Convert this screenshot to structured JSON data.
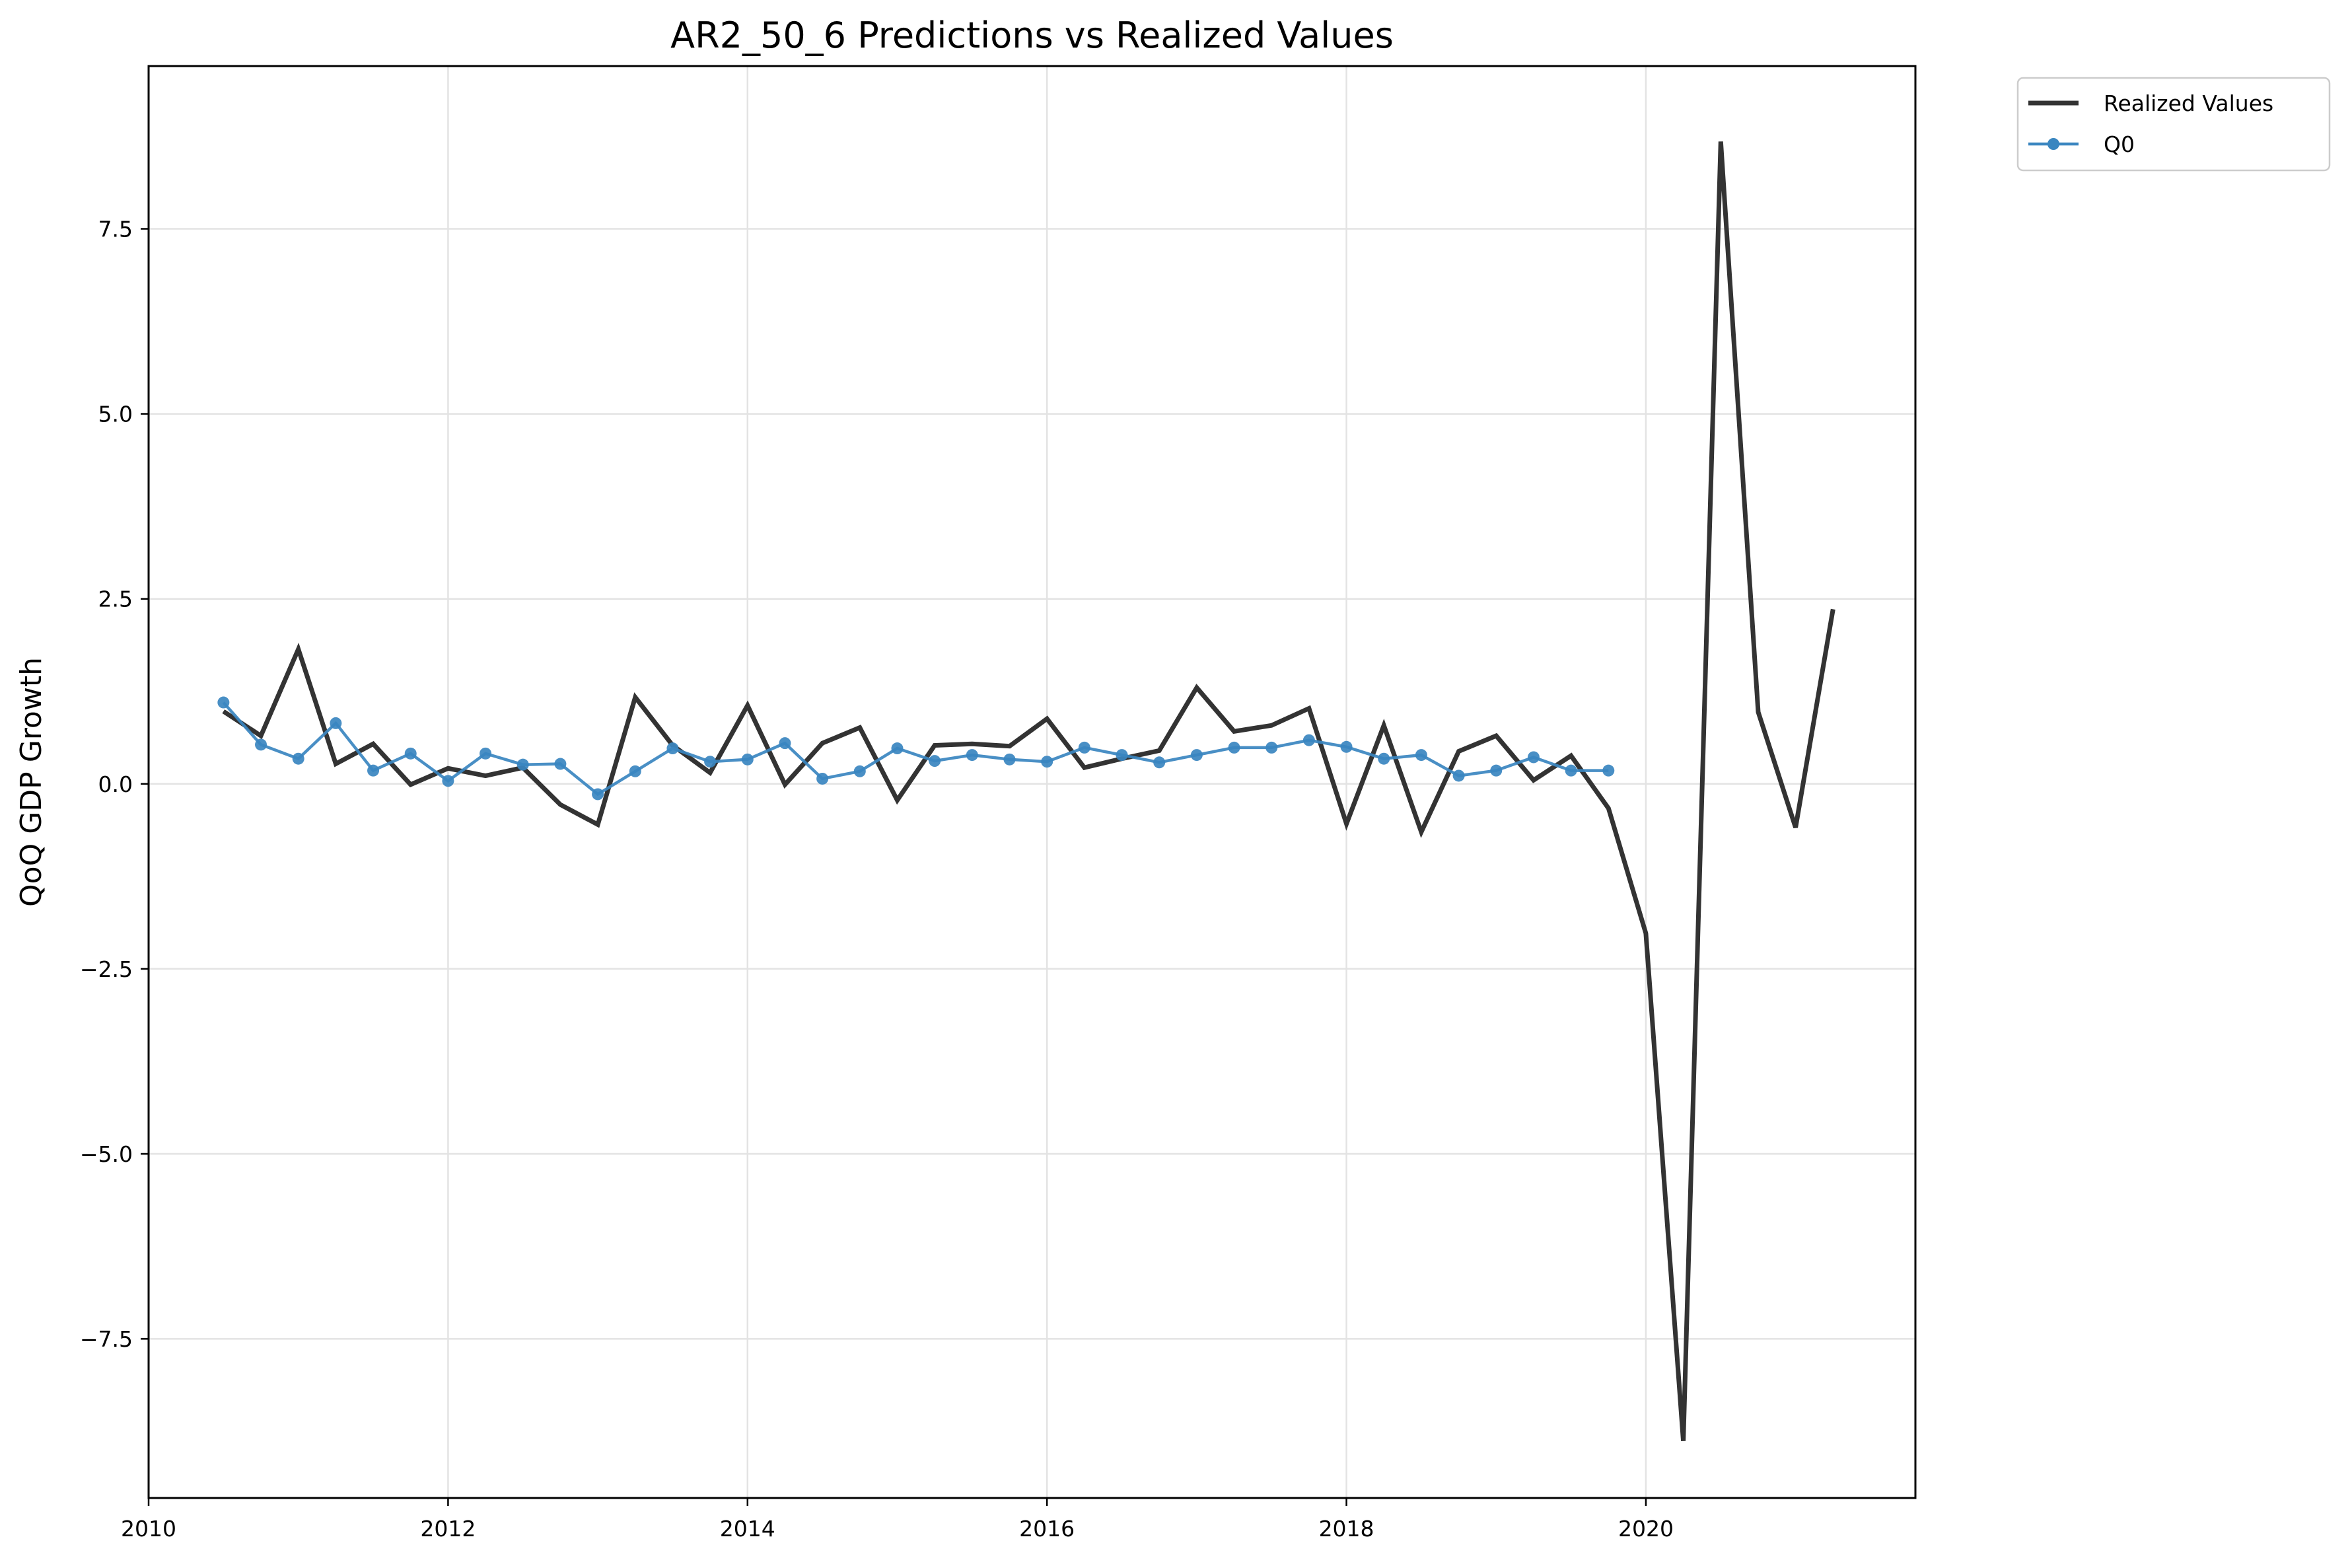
{
  "chart_data": {
    "type": "line",
    "title": "AR2_50_6 Predictions vs Realized Values",
    "xlabel": "",
    "ylabel": "QoQ GDP Growth",
    "xlim": [
      2010.0,
      2021.8
    ],
    "ylim": [
      -9.65,
      9.7
    ],
    "x_ticks": [
      2010,
      2012,
      2014,
      2016,
      2018,
      2020
    ],
    "x_tick_labels": [
      "2010",
      "2012",
      "2014",
      "2016",
      "2018",
      "2020"
    ],
    "y_ticks": [
      -7.5,
      -5.0,
      -2.5,
      0.0,
      2.5,
      5.0,
      7.5
    ],
    "y_tick_labels": [
      "−7.5",
      "−5.0",
      "−2.5",
      "0.0",
      "2.5",
      "5.0",
      "7.5"
    ],
    "grid": true,
    "legend_position": "outside top-right",
    "series": [
      {
        "name": "Realized Values",
        "color": "#333333",
        "marker": "none",
        "x": [
          2010.5,
          2010.75,
          2011.0,
          2011.25,
          2011.5,
          2011.75,
          2012.0,
          2012.25,
          2012.5,
          2012.75,
          2013.0,
          2013.25,
          2013.5,
          2013.75,
          2014.0,
          2014.25,
          2014.5,
          2014.75,
          2015.0,
          2015.25,
          2015.5,
          2015.75,
          2016.0,
          2016.25,
          2016.5,
          2016.75,
          2017.0,
          2017.25,
          2017.5,
          2017.75,
          2018.0,
          2018.25,
          2018.5,
          2018.75,
          2019.0,
          2019.25,
          2019.5,
          2019.75,
          2020.0,
          2020.25,
          2020.5,
          2020.75,
          2021.0,
          2021.25
        ],
        "values": [
          0.98,
          0.65,
          1.82,
          0.27,
          0.54,
          -0.01,
          0.21,
          0.11,
          0.22,
          -0.28,
          -0.55,
          1.17,
          0.52,
          0.15,
          1.06,
          -0.01,
          0.55,
          0.76,
          -0.22,
          0.52,
          0.54,
          0.51,
          0.88,
          0.22,
          0.34,
          0.45,
          1.3,
          0.71,
          0.79,
          1.02,
          -0.54,
          0.79,
          -0.65,
          0.44,
          0.65,
          0.05,
          0.38,
          -0.33,
          -2.02,
          -8.88,
          8.68,
          0.97,
          -0.59,
          2.36
        ]
      },
      {
        "name": "Q0",
        "color": "#3a86c0",
        "marker": "circle",
        "x": [
          2010.5,
          2010.75,
          2011.0,
          2011.25,
          2011.5,
          2011.75,
          2012.0,
          2012.25,
          2012.5,
          2012.75,
          2013.0,
          2013.25,
          2013.5,
          2013.75,
          2014.0,
          2014.25,
          2014.5,
          2014.75,
          2015.0,
          2015.25,
          2015.5,
          2015.75,
          2016.0,
          2016.25,
          2016.5,
          2016.75,
          2017.0,
          2017.25,
          2017.5,
          2017.75,
          2018.0,
          2018.25,
          2018.5,
          2018.75,
          2019.0,
          2019.25,
          2019.5,
          2019.75
        ],
        "values": [
          1.1,
          0.53,
          0.34,
          0.82,
          0.18,
          0.41,
          0.04,
          0.41,
          0.26,
          0.27,
          -0.14,
          0.17,
          0.48,
          0.3,
          0.33,
          0.55,
          0.07,
          0.17,
          0.48,
          0.31,
          0.39,
          0.33,
          0.3,
          0.49,
          0.39,
          0.29,
          0.39,
          0.49,
          0.49,
          0.59,
          0.5,
          0.34,
          0.39,
          0.11,
          0.18,
          0.36,
          0.18,
          0.18
        ]
      }
    ]
  }
}
